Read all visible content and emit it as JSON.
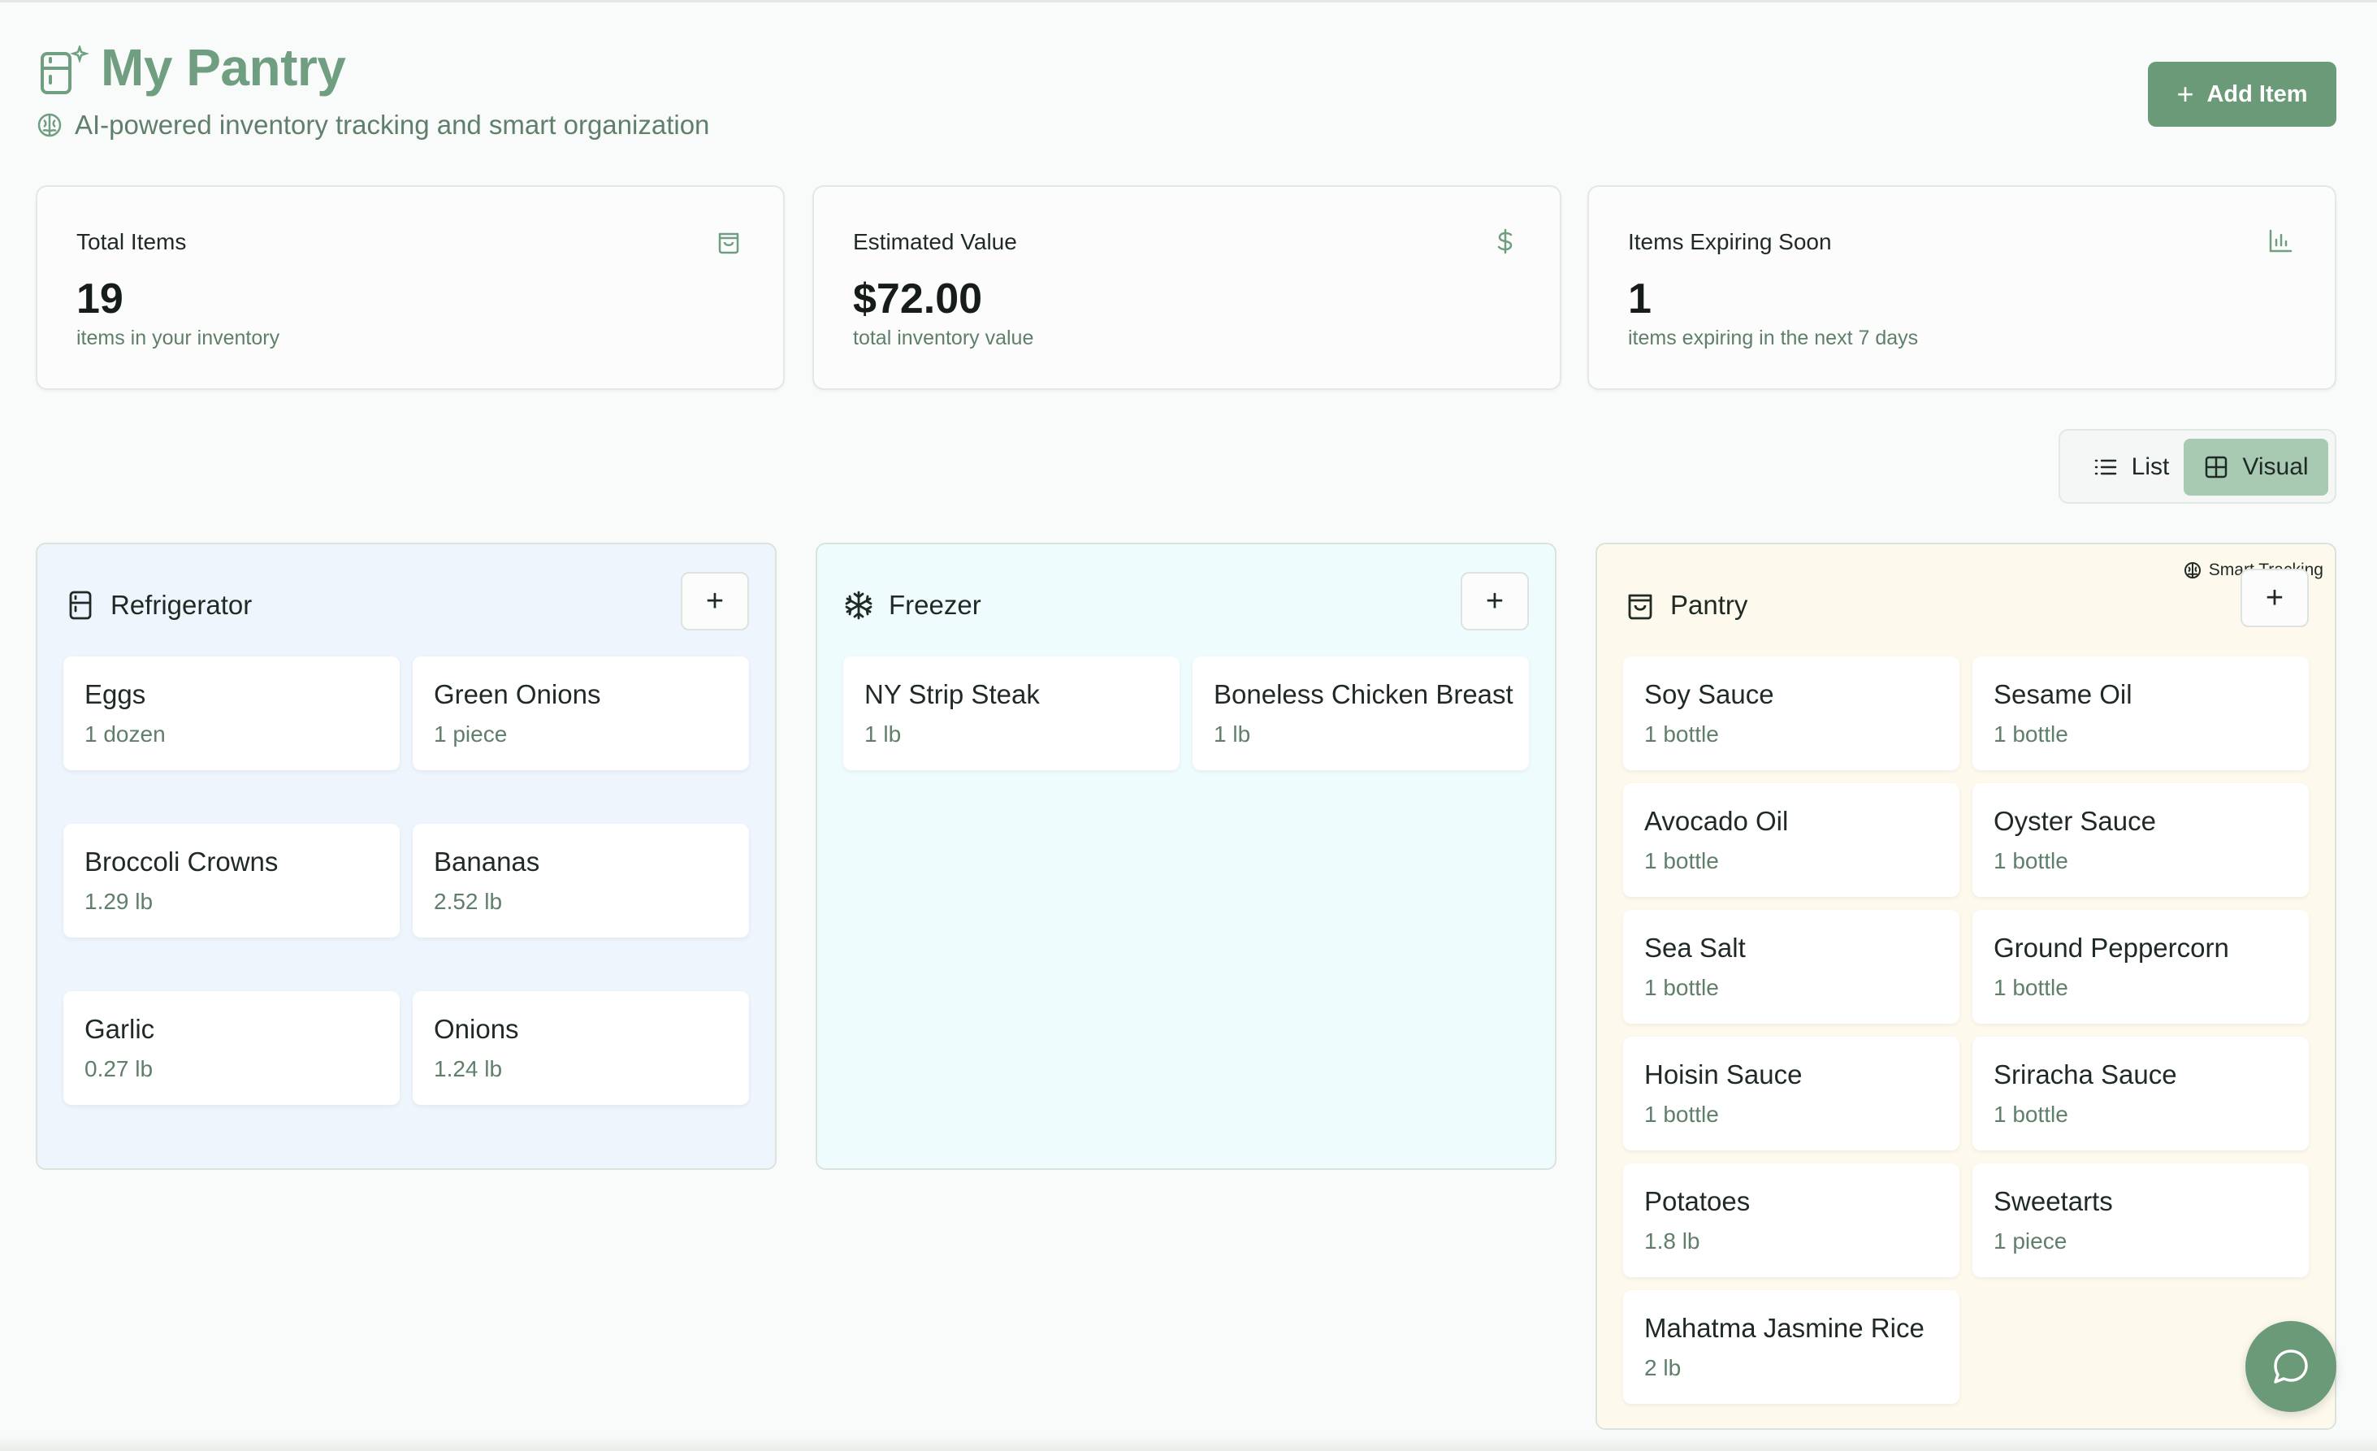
{
  "header": {
    "title": "My Pantry",
    "subtitle": "AI-powered inventory tracking and smart organization",
    "add_item_label": "Add Item",
    "icon": "fridge-sparkle-icon"
  },
  "stats": [
    {
      "label": "Total Items",
      "value": "19",
      "desc": "items in your inventory",
      "icon": "shopping-bag-icon"
    },
    {
      "label": "Estimated Value",
      "value": "$72.00",
      "desc": "total inventory value",
      "icon": "dollar-icon"
    },
    {
      "label": "Items Expiring Soon",
      "value": "1",
      "desc": "items expiring in the next 7 days",
      "icon": "bar-chart-icon"
    }
  ],
  "view_toggle": {
    "list_label": "List",
    "visual_label": "Visual",
    "selected": "Visual"
  },
  "storage": {
    "refrigerator": {
      "title": "Refrigerator",
      "items": [
        {
          "name": "Eggs",
          "qty": "1 dozen"
        },
        {
          "name": "Green Onions",
          "qty": "1 piece"
        },
        {
          "name": "Broccoli Crowns",
          "qty": "1.29 lb"
        },
        {
          "name": "Bananas",
          "qty": "2.52 lb"
        },
        {
          "name": "Garlic",
          "qty": "0.27 lb"
        },
        {
          "name": "Onions",
          "qty": "1.24 lb"
        }
      ]
    },
    "freezer": {
      "title": "Freezer",
      "items": [
        {
          "name": "NY Strip Steak",
          "qty": "1 lb"
        },
        {
          "name": "Boneless Chicken Breast",
          "qty": "1 lb"
        }
      ]
    },
    "pantry": {
      "title": "Pantry",
      "badge": "Smart Tracking",
      "items": [
        {
          "name": "Soy Sauce",
          "qty": "1 bottle"
        },
        {
          "name": "Sesame Oil",
          "qty": "1 bottle"
        },
        {
          "name": "Avocado Oil",
          "qty": "1 bottle"
        },
        {
          "name": "Oyster Sauce",
          "qty": "1 bottle"
        },
        {
          "name": "Sea Salt",
          "qty": "1 bottle"
        },
        {
          "name": "Ground Peppercorn",
          "qty": "1 bottle"
        },
        {
          "name": "Hoisin Sauce",
          "qty": "1 bottle"
        },
        {
          "name": "Sriracha Sauce",
          "qty": "1 bottle"
        },
        {
          "name": "Potatoes",
          "qty": "1.8 lb"
        },
        {
          "name": "Sweetarts",
          "qty": "1 piece"
        },
        {
          "name": "Mahatma Jasmine Rice",
          "qty": "2 lb"
        }
      ]
    }
  },
  "colors": {
    "accent": "#6a9a78",
    "title": "#6f9e80",
    "fridge_bg": "#eff5fd",
    "freezer_bg": "#eefcfd",
    "pantry_bg": "#fdfaed"
  }
}
